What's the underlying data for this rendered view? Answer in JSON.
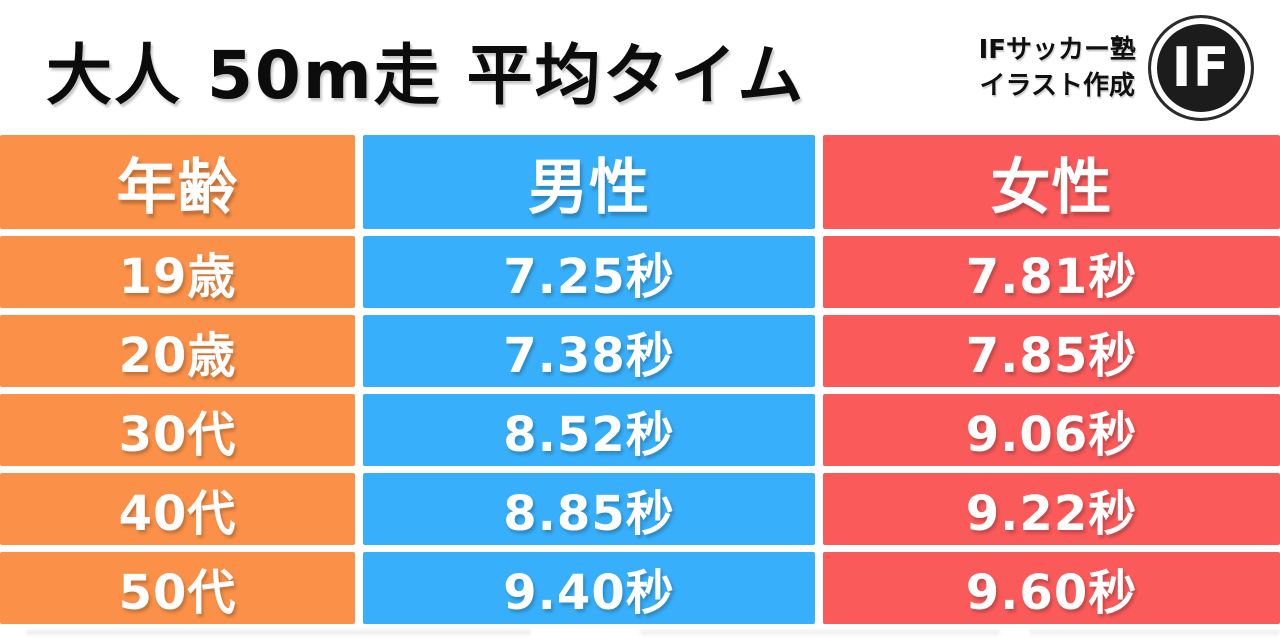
{
  "page": {
    "background": "#FFFFFF"
  },
  "header": {
    "title": "大人 50m走 平均タイム",
    "credit": {
      "line1": "IFサッカー塾",
      "line2": "イラスト作成"
    },
    "logo_text": "IF"
  },
  "table": {
    "text_color": "#FFFFFF",
    "columns": [
      {
        "id": "age",
        "label": "年齢",
        "color": "#FB9148"
      },
      {
        "id": "male",
        "label": "男性",
        "color": "#38AFFA"
      },
      {
        "id": "female",
        "label": "女性",
        "color": "#FB5A5A"
      }
    ],
    "rows": [
      {
        "age": "19歳",
        "male": "7.25秒",
        "female": "7.81秒"
      },
      {
        "age": "20歳",
        "male": "7.38秒",
        "female": "7.85秒"
      },
      {
        "age": "30代",
        "male": "8.52秒",
        "female": "9.06秒"
      },
      {
        "age": "40代",
        "male": "8.85秒",
        "female": "9.22秒"
      },
      {
        "age": "50代",
        "male": "9.40秒",
        "female": "9.60秒"
      }
    ]
  },
  "chart_data": {
    "type": "table",
    "title": "大人 50m走 平均タイム",
    "columns": [
      "年齢",
      "男性",
      "女性"
    ],
    "categories": [
      "19歳",
      "20歳",
      "30代",
      "40代",
      "50代"
    ],
    "series": [
      {
        "name": "男性",
        "values_seconds": [
          7.25,
          7.38,
          8.52,
          8.85,
          9.4
        ]
      },
      {
        "name": "女性",
        "values_seconds": [
          7.81,
          7.85,
          9.06,
          9.22,
          9.6
        ]
      }
    ],
    "rows": [
      [
        "19歳",
        "7.25秒",
        "7.81秒"
      ],
      [
        "20歳",
        "7.38秒",
        "7.85秒"
      ],
      [
        "30代",
        "8.52秒",
        "9.06秒"
      ],
      [
        "40代",
        "8.85秒",
        "9.22秒"
      ],
      [
        "50代",
        "9.40秒",
        "9.60秒"
      ]
    ],
    "unit": "秒",
    "legend_position": "none",
    "grid": false
  }
}
